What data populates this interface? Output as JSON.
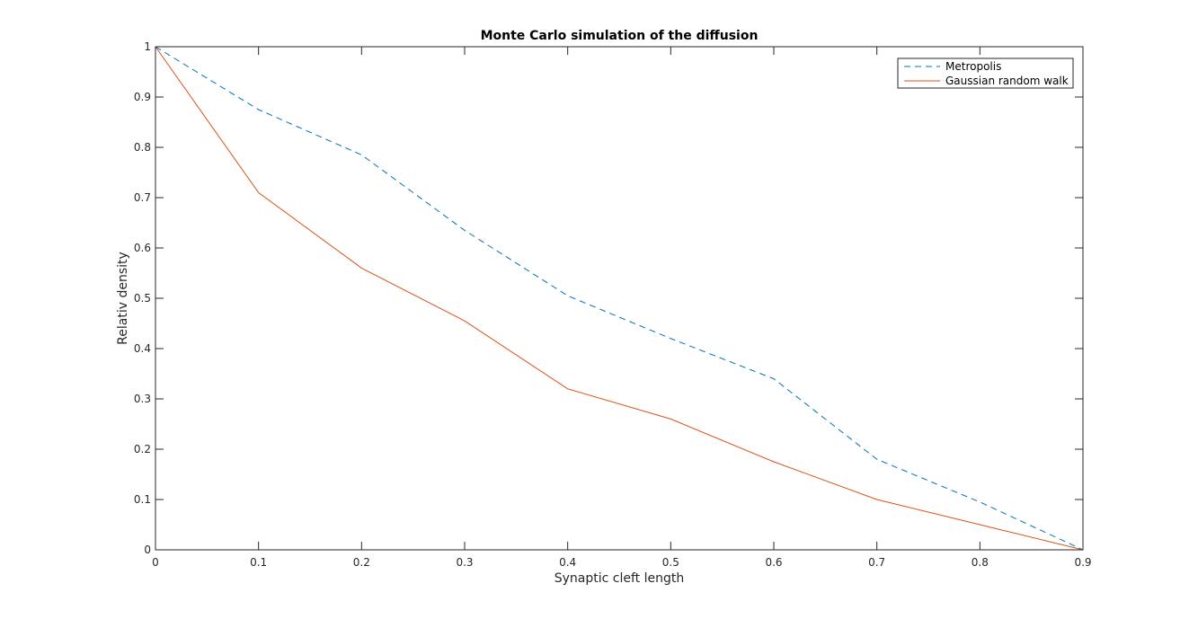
{
  "chart_data": {
    "type": "line",
    "title": "Monte Carlo simulation of the diffusion",
    "xlabel": "Synaptic cleft length",
    "ylabel": "Relativ density",
    "xlim": [
      0,
      0.9
    ],
    "ylim": [
      0,
      1
    ],
    "x_ticks": [
      "0",
      "0.1",
      "0.2",
      "0.3",
      "0.4",
      "0.5",
      "0.6",
      "0.7",
      "0.8",
      "0.9"
    ],
    "y_ticks": [
      "0",
      "0.1",
      "0.2",
      "0.3",
      "0.4",
      "0.5",
      "0.6",
      "0.7",
      "0.8",
      "0.9",
      "1"
    ],
    "grid": false,
    "legend_position": "top-right",
    "x": [
      0,
      0.1,
      0.2,
      0.3,
      0.4,
      0.5,
      0.6,
      0.7,
      0.8,
      0.9
    ],
    "series": [
      {
        "name": "Metropolis",
        "color": "#0072BD",
        "style": "dashed",
        "values": [
          1.0,
          0.875,
          0.785,
          0.635,
          0.505,
          0.42,
          0.34,
          0.18,
          0.095,
          0.0
        ]
      },
      {
        "name": "Gaussian random walk",
        "color": "#D95319",
        "style": "solid",
        "values": [
          1.0,
          0.71,
          0.56,
          0.455,
          0.32,
          0.26,
          0.175,
          0.1,
          0.05,
          0.0
        ]
      }
    ]
  }
}
